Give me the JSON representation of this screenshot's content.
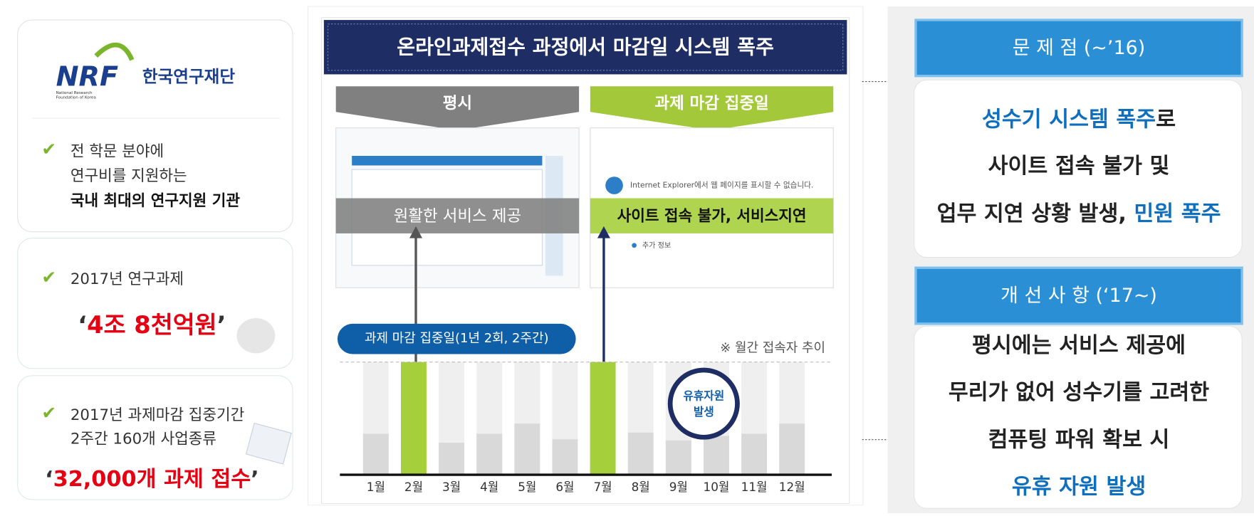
{
  "logo": {
    "mark": "NRF",
    "name": "한국연구재단",
    "sub1": "National Research",
    "sub2": "Foundation of Korea"
  },
  "about": {
    "lines": [
      "전 학문 분야에",
      "연구비를 지원하는",
      "국내 최대의 연구지원 기관"
    ]
  },
  "budget": {
    "label": "2017년 연구과제",
    "quote_open": "‘",
    "amount": "4조 8천억원",
    "quote_close": "’"
  },
  "submissions": {
    "lines": [
      "2017년 과제마감 집중기간",
      "2주간 160개 사업종류"
    ],
    "quote_open": "‘",
    "amount": "32,000개 과제 접수",
    "quote_close": "’"
  },
  "center": {
    "title": "온라인과제접수 과정에서 마감일 시스템 폭주",
    "normal": {
      "header": "평시",
      "status": "원활한 서비스 제공"
    },
    "peak": {
      "header": "과제 마감 집중일",
      "status": "사이트 접속 불가, 서비스지연",
      "error": "Internet Explorer에서 웹 페이지를 표시할 수 없습니다.",
      "more": "추가 정보"
    },
    "pill": "과제 마감 집중일(1년 2회, 2주간)",
    "note": "※ 월간 접속자 추이",
    "idle": [
      "유휴자원",
      "발생"
    ]
  },
  "monthly_chart": {
    "type": "bar",
    "categories": [
      "1월",
      "2월",
      "3월",
      "4월",
      "5월",
      "6월",
      "7월",
      "8월",
      "9월",
      "10월",
      "11월",
      "12월"
    ],
    "values": [
      36,
      100,
      28,
      36,
      45,
      31,
      100,
      37,
      30,
      34,
      36,
      45
    ],
    "colors": [
      "#d9d9d9",
      "#a6cf3c",
      "#d9d9d9",
      "#d9d9d9",
      "#d9d9d9",
      "#d9d9d9",
      "#a6cf3c",
      "#d9d9d9",
      "#d9d9d9",
      "#d9d9d9",
      "#d9d9d9",
      "#d9d9d9"
    ],
    "ylim": [
      0,
      100
    ]
  },
  "problem": {
    "title": "문 제 점 (~’16)",
    "line1_blue": "성수기 시스템 폭주",
    "line1_rest": "로",
    "line2": "사이트 접속 불가 및",
    "line3_rest": "업무 지연 상황 발생, ",
    "line3_blue": "민원 폭주"
  },
  "improvement": {
    "title": "개 선 사 항 (‘17~)",
    "lines": [
      "평시에는 서비스 제공에",
      "무리가 없어 성수기를 고려한",
      "컴퓨팅 파워 확보 시"
    ],
    "blue": "유휴 자원 발생"
  }
}
